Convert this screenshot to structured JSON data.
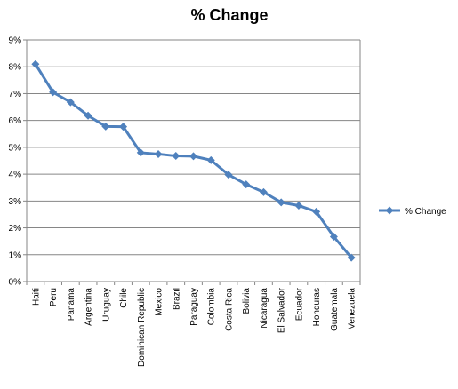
{
  "chart_data": {
    "type": "line",
    "title": "% Change",
    "xlabel": "",
    "ylabel": "",
    "categories": [
      "Haiti",
      "Peru",
      "Panama",
      "Argentina",
      "Uruguay",
      "Chile",
      "Dominican Republic",
      "Mexico",
      "Brazil",
      "Paraguay",
      "Colombia",
      "Costa Rica",
      "Bolivia",
      "Nicaragua",
      "El Salvador",
      "Ecuador",
      "Honduras",
      "Guatemala",
      "Venezuela"
    ],
    "ylim": [
      0,
      9
    ],
    "y_ticks": [
      "0%",
      "1%",
      "2%",
      "3%",
      "4%",
      "5%",
      "6%",
      "7%",
      "8%",
      "9%"
    ],
    "grid": true,
    "legend_position": "right",
    "series": [
      {
        "name": "% Change",
        "color": "#4f81bd",
        "marker": "diamond",
        "values": [
          8.1,
          7.05,
          6.68,
          6.18,
          5.78,
          5.77,
          4.8,
          4.75,
          4.68,
          4.67,
          4.52,
          3.98,
          3.62,
          3.33,
          2.95,
          2.83,
          2.6,
          1.67,
          0.89
        ]
      }
    ]
  }
}
